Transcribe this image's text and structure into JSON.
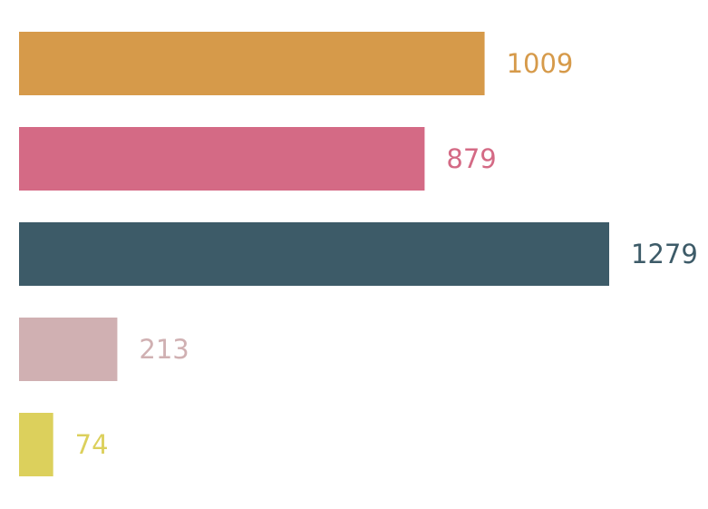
{
  "chart_data": {
    "type": "bar",
    "orientation": "horizontal",
    "values": [
      1009,
      879,
      1279,
      213,
      74
    ],
    "data_labels": [
      "1009",
      "879",
      "1279",
      "213",
      "74"
    ],
    "colors": [
      "#d69a4a",
      "#d46a85",
      "#3d5b68",
      "#d0b0b2",
      "#dcd05c"
    ],
    "xlim": [
      0,
      1279
    ],
    "grid": false,
    "legend": "none"
  }
}
